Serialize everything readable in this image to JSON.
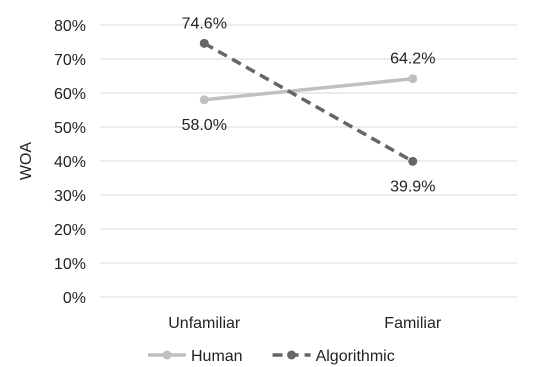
{
  "chart_data": {
    "type": "line",
    "categories": [
      "Unfamiliar",
      "Familiar"
    ],
    "series": [
      {
        "name": "Human",
        "values": [
          58.0,
          64.2
        ],
        "labels": [
          "58.0%",
          "64.2%"
        ],
        "color": "#c0c0c0",
        "dash": "solid"
      },
      {
        "name": "Algorithmic",
        "values": [
          74.6,
          39.9
        ],
        "labels": [
          "74.6%",
          "39.9%"
        ],
        "color": "#666666",
        "dash": "dashed"
      }
    ],
    "ylabel": "WOA",
    "ylim": [
      0,
      80
    ],
    "yticks": [
      "0%",
      "10%",
      "20%",
      "30%",
      "40%",
      "50%",
      "60%",
      "70%",
      "80%"
    ],
    "grid": true,
    "legend": "bottom"
  }
}
